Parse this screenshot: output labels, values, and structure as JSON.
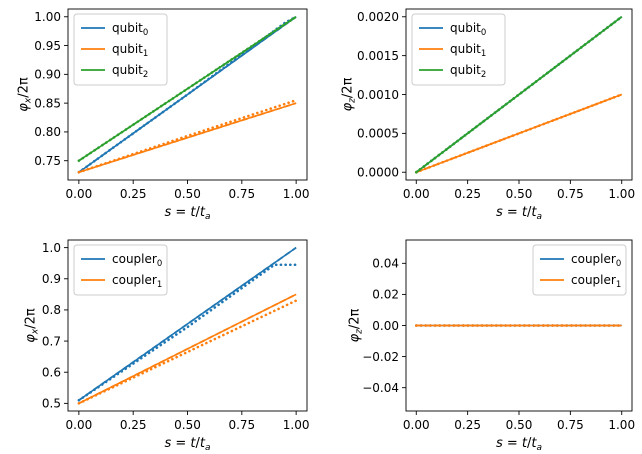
{
  "colors": {
    "blue": "#1f77b4",
    "orange": "#ff7f0e",
    "green": "#2ca02c"
  },
  "chart_data": [
    {
      "type": "line",
      "xlabel": "s = t/t_a",
      "ylabel": "φ_x/2π",
      "xlim": [
        -0.05,
        1.05
      ],
      "ylim": [
        0.7165,
        1.0135
      ],
      "xticks": [
        "0.00",
        "0.25",
        "0.50",
        "0.75",
        "1.00"
      ],
      "yticks": [
        "0.75",
        "0.80",
        "0.85",
        "0.90",
        "0.95",
        "1.00"
      ],
      "legend": "top-left",
      "series": [
        {
          "base": "qubit",
          "sub": "0",
          "color": "#1f77b4",
          "solid": {
            "x": [
              0,
              1
            ],
            "y": [
              0.73,
              1.0
            ]
          },
          "dashed": {
            "x": [
              0,
              1
            ],
            "y": [
              0.73,
              1.0
            ]
          },
          "dotted": {
            "x": [
              0,
              0.5,
              0.9,
              0.95,
              1.0
            ],
            "y": [
              0.73,
              0.865,
              0.976,
              0.99,
              1.0
            ]
          }
        },
        {
          "base": "qubit",
          "sub": "1",
          "color": "#ff7f0e",
          "solid": {
            "x": [
              0,
              1
            ],
            "y": [
              0.73,
              0.85
            ]
          },
          "dashed": {
            "x": [
              0,
              1
            ],
            "y": [
              0.73,
              0.85
            ]
          },
          "dotted": {
            "x": [
              0,
              0.5,
              1.0
            ],
            "y": [
              0.73,
              0.793,
              0.855
            ]
          }
        },
        {
          "base": "qubit",
          "sub": "2",
          "color": "#2ca02c",
          "solid": {
            "x": [
              0,
              1
            ],
            "y": [
              0.75,
              1.0
            ]
          },
          "dashed": {
            "x": [
              0,
              1
            ],
            "y": [
              0.75,
              1.0
            ]
          },
          "dotted": {
            "x": [
              0,
              1
            ],
            "y": [
              0.75,
              1.0
            ]
          }
        }
      ]
    },
    {
      "type": "line",
      "xlabel": "s = t/t_a",
      "ylabel": "φ_z/2π",
      "xlim": [
        -0.05,
        1.05
      ],
      "ylim": [
        -0.0001,
        0.0021
      ],
      "xticks": [
        "0.00",
        "0.25",
        "0.50",
        "0.75",
        "1.00"
      ],
      "yticks": [
        "0.0000",
        "0.0005",
        "0.0010",
        "0.0015",
        "0.0020"
      ],
      "legend": "top-left",
      "series": [
        {
          "base": "qubit",
          "sub": "0",
          "color": "#1f77b4",
          "solid": {
            "x": [
              0,
              1
            ],
            "y": [
              0,
              0.002
            ]
          },
          "dashed": {
            "x": [
              0,
              1
            ],
            "y": [
              0,
              0.002
            ]
          },
          "dotted": {
            "x": [
              0,
              1
            ],
            "y": [
              0,
              0.002
            ]
          }
        },
        {
          "base": "qubit",
          "sub": "1",
          "color": "#ff7f0e",
          "solid": {
            "x": [
              0,
              1
            ],
            "y": [
              0,
              0.001
            ]
          },
          "dashed": {
            "x": [
              0,
              1
            ],
            "y": [
              0,
              0.001
            ]
          },
          "dotted": {
            "x": [
              0,
              1
            ],
            "y": [
              0,
              0.001
            ]
          }
        },
        {
          "base": "qubit",
          "sub": "2",
          "color": "#2ca02c",
          "solid": {
            "x": [
              0,
              1
            ],
            "y": [
              0,
              0.002
            ]
          },
          "dashed": {
            "x": [
              0,
              1
            ],
            "y": [
              0,
              0.002
            ]
          },
          "dotted": {
            "x": [
              0,
              1
            ],
            "y": [
              0,
              0.002
            ]
          }
        }
      ]
    },
    {
      "type": "line",
      "xlabel": "s = t/t_a",
      "ylabel": "φ_x/2π",
      "xlim": [
        -0.05,
        1.05
      ],
      "ylim": [
        0.4755,
        1.0245
      ],
      "xticks": [
        "0.00",
        "0.25",
        "0.50",
        "0.75",
        "1.00"
      ],
      "yticks": [
        "0.5",
        "0.6",
        "0.7",
        "0.8",
        "0.9",
        "1.0"
      ],
      "legend": "top-left",
      "series": [
        {
          "base": "coupler",
          "sub": "0",
          "color": "#1f77b4",
          "solid": {
            "x": [
              0,
              1
            ],
            "y": [
              0.51,
              1.0
            ]
          },
          "dashed": {
            "x": [
              0,
              1
            ],
            "y": [
              0.51,
              1.0
            ]
          },
          "dotted": {
            "x": [
              0,
              0.5,
              0.9,
              1.0
            ],
            "y": [
              0.51,
              0.745,
              0.945,
              0.945
            ]
          }
        },
        {
          "base": "coupler",
          "sub": "1",
          "color": "#ff7f0e",
          "solid": {
            "x": [
              0,
              1
            ],
            "y": [
              0.5,
              0.85
            ]
          },
          "dashed": {
            "x": [
              0,
              1
            ],
            "y": [
              0.5,
              0.85
            ]
          },
          "dotted": {
            "x": [
              0,
              1
            ],
            "y": [
              0.5,
              0.83
            ]
          }
        }
      ]
    },
    {
      "type": "line",
      "xlabel": "s = t/t_a",
      "ylabel": "φ_z/2π",
      "xlim": [
        -0.05,
        1.05
      ],
      "ylim": [
        -0.055,
        0.055
      ],
      "xticks": [
        "0.00",
        "0.25",
        "0.50",
        "0.75",
        "1.00"
      ],
      "yticks": [
        "−0.04",
        "−0.02",
        "0.00",
        "0.02",
        "0.04"
      ],
      "legend": "top-right",
      "series": [
        {
          "base": "coupler",
          "sub": "0",
          "color": "#1f77b4",
          "solid": {
            "x": [
              0,
              1
            ],
            "y": [
              0,
              0
            ]
          },
          "dashed": {
            "x": [
              0,
              1
            ],
            "y": [
              0,
              0
            ]
          },
          "dotted": {
            "x": [
              0,
              1
            ],
            "y": [
              0,
              0
            ]
          }
        },
        {
          "base": "coupler",
          "sub": "1",
          "color": "#ff7f0e",
          "solid": {
            "x": [
              0,
              1
            ],
            "y": [
              0,
              0
            ]
          },
          "dashed": {
            "x": [
              0,
              1
            ],
            "y": [
              0,
              0
            ]
          },
          "dotted": {
            "x": [
              0,
              1
            ],
            "y": [
              0,
              0
            ]
          }
        }
      ]
    }
  ]
}
